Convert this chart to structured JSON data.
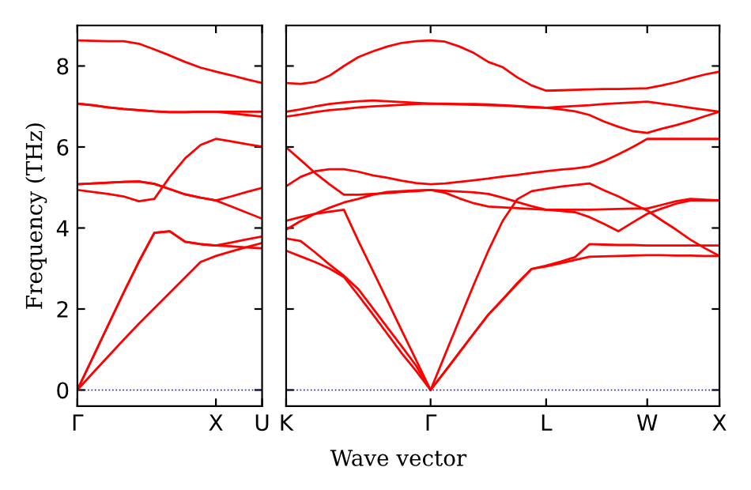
{
  "chart_data": [
    {
      "type": "line",
      "ylabel": "Frequency (THz)",
      "ylim": [
        -0.4,
        9
      ],
      "yticks": [
        0,
        2,
        4,
        6,
        8
      ],
      "categories": [
        "Γ",
        null,
        null,
        null,
        null,
        null,
        null,
        null,
        null,
        "X",
        null,
        null,
        "U"
      ],
      "grid": false,
      "legend": false,
      "marker": "none",
      "line_style": "solid",
      "ref_lines": [
        {
          "axis": "y",
          "value": 0,
          "color": "#0000ff",
          "line_style": "dotted"
        }
      ],
      "series": [
        {
          "color": "#ff0000",
          "values": [
            8.63,
            8.62,
            8.61,
            8.61,
            8.55,
            8.41,
            8.26,
            8.1,
            7.96,
            7.86,
            7.77,
            7.67,
            7.58
          ]
        },
        {
          "color": "#ff0000",
          "values": [
            7.07,
            7.03,
            6.98,
            6.94,
            6.91,
            6.88,
            6.86,
            6.86,
            6.87,
            6.87,
            6.87,
            6.87,
            6.87
          ]
        },
        {
          "color": "#ff0000",
          "values": [
            7.07,
            7.03,
            6.98,
            6.94,
            6.91,
            6.88,
            6.86,
            6.86,
            6.87,
            6.87,
            6.83,
            6.79,
            6.75
          ]
        },
        {
          "color": "#ff0000",
          "values": [
            4.94,
            4.89,
            4.84,
            4.78,
            4.66,
            4.72,
            5.26,
            5.72,
            6.05,
            6.2,
            6.14,
            6.07,
            6.01
          ]
        },
        {
          "color": "#ff0000",
          "values": [
            5.08,
            5.1,
            5.12,
            5.14,
            5.15,
            5.09,
            4.96,
            4.83,
            4.75,
            4.68,
            4.78,
            4.89,
            4.99
          ]
        },
        {
          "color": "#ff0000",
          "values": [
            5.08,
            5.1,
            5.12,
            5.14,
            5.15,
            5.09,
            4.96,
            4.83,
            4.75,
            4.68,
            4.53,
            4.38,
            4.23
          ]
        },
        {
          "color": "#ff0000",
          "values": [
            0,
            0.42,
            0.83,
            1.24,
            1.64,
            2.02,
            2.4,
            2.78,
            3.16,
            3.31,
            3.42,
            3.53,
            3.63
          ]
        },
        {
          "color": "#ff0000",
          "values": [
            0,
            0.8,
            1.6,
            2.4,
            3.17,
            3.88,
            3.92,
            3.66,
            3.6,
            3.57,
            3.64,
            3.72,
            3.79
          ]
        },
        {
          "color": "#ff0000",
          "values": [
            0,
            0.8,
            1.6,
            2.4,
            3.17,
            3.88,
            3.92,
            3.66,
            3.6,
            3.57,
            3.55,
            3.52,
            3.5
          ]
        }
      ]
    },
    {
      "type": "line",
      "xlabel": "Wave vector",
      "tick_labels": "x",
      "ylim": [
        -0.4,
        9
      ],
      "yticks": [
        0,
        2,
        4,
        6,
        8
      ],
      "categories": [
        "K",
        null,
        null,
        null,
        null,
        null,
        null,
        null,
        null,
        null,
        "Γ",
        null,
        null,
        null,
        null,
        null,
        null,
        null,
        "L",
        null,
        null,
        null,
        null,
        null,
        null,
        "W",
        null,
        null,
        null,
        null,
        "X"
      ],
      "grid": false,
      "legend": false,
      "marker": "none",
      "line_style": "solid",
      "ref_lines": [
        {
          "axis": "y",
          "value": 0,
          "color": "#0000ff",
          "line_style": "dotted"
        }
      ],
      "series": [
        {
          "color": "#ff0000",
          "values": [
            7.58,
            7.56,
            7.6,
            7.76,
            8.0,
            8.22,
            8.36,
            8.48,
            8.57,
            8.61,
            8.63,
            8.6,
            8.48,
            8.32,
            8.1,
            7.97,
            7.72,
            7.52,
            7.39,
            7.4,
            7.41,
            7.42,
            7.43,
            7.43,
            7.44,
            7.45,
            7.52,
            7.6,
            7.7,
            7.79,
            7.86
          ]
        },
        {
          "color": "#ff0000",
          "values": [
            6.87,
            6.93,
            7.0,
            7.06,
            7.1,
            7.13,
            7.15,
            7.13,
            7.11,
            7.09,
            7.07,
            7.07,
            7.06,
            7.06,
            7.05,
            7.03,
            7.01,
            6.99,
            6.97,
            6.99,
            7.01,
            7.03,
            7.06,
            7.08,
            7.1,
            7.12,
            7.07,
            7.02,
            6.97,
            6.92,
            6.87
          ]
        },
        {
          "color": "#ff0000",
          "values": [
            6.75,
            6.8,
            6.86,
            6.91,
            6.94,
            6.98,
            7.0,
            7.02,
            7.04,
            7.06,
            7.07,
            7.06,
            7.05,
            7.04,
            7.03,
            7.02,
            7.0,
            6.98,
            6.97,
            6.93,
            6.88,
            6.79,
            6.63,
            6.5,
            6.39,
            6.35,
            6.45,
            6.54,
            6.64,
            6.76,
            6.87
          ]
        },
        {
          "color": "#ff0000",
          "values": [
            5.99,
            5.68,
            5.36,
            5.08,
            4.82,
            4.82,
            4.84,
            4.86,
            4.89,
            4.91,
            4.94,
            4.92,
            4.9,
            4.88,
            4.84,
            4.75,
            4.64,
            4.54,
            4.45,
            4.45,
            4.45,
            4.45,
            4.46,
            4.47,
            4.48,
            4.48,
            4.57,
            4.66,
            4.72,
            4.7,
            4.68
          ]
        },
        {
          "color": "#ff0000",
          "values": [
            5.03,
            5.26,
            5.4,
            5.45,
            5.45,
            5.39,
            5.3,
            5.24,
            5.17,
            5.11,
            5.08,
            5.1,
            5.14,
            5.18,
            5.22,
            5.27,
            5.31,
            5.36,
            5.4,
            5.44,
            5.47,
            5.52,
            5.65,
            5.82,
            6.0,
            6.2,
            6.2,
            6.2,
            6.2,
            6.2,
            6.2
          ]
        },
        {
          "color": "#ff0000",
          "values": [
            3.96,
            4.17,
            4.35,
            4.5,
            4.63,
            4.72,
            4.82,
            4.89,
            4.91,
            4.93,
            4.94,
            4.87,
            4.73,
            4.61,
            4.53,
            4.51,
            4.49,
            4.47,
            4.45,
            4.42,
            4.39,
            4.27,
            4.1,
            3.92,
            4.14,
            4.35,
            4.48,
            4.6,
            4.68,
            4.68,
            4.68
          ]
        },
        {
          "color": "#ff0000",
          "values": [
            4.18,
            4.27,
            4.35,
            4.4,
            4.45,
            3.68,
            2.95,
            2.21,
            1.47,
            0.74,
            0,
            0.87,
            1.74,
            2.61,
            3.44,
            4.18,
            4.71,
            4.91,
            4.97,
            5.02,
            5.06,
            5.1,
            4.93,
            4.78,
            4.6,
            4.43,
            4.19,
            3.96,
            3.71,
            3.5,
            3.31
          ]
        },
        {
          "color": "#ff0000",
          "values": [
            3.74,
            3.68,
            3.4,
            3.1,
            2.82,
            2.49,
            2.02,
            1.55,
            1.08,
            0.6,
            0,
            0.46,
            0.93,
            1.4,
            1.86,
            2.24,
            2.64,
            2.99,
            3.07,
            3.17,
            3.28,
            3.6,
            3.59,
            3.58,
            3.58,
            3.57,
            3.57,
            3.57,
            3.57,
            3.57,
            3.57
          ]
        },
        {
          "color": "#ff0000",
          "values": [
            3.44,
            3.3,
            3.16,
            3.0,
            2.79,
            2.34,
            1.87,
            1.39,
            0.91,
            0.47,
            0,
            0.46,
            0.93,
            1.4,
            1.86,
            2.24,
            2.62,
            2.99,
            3.05,
            3.13,
            3.21,
            3.29,
            3.3,
            3.31,
            3.32,
            3.33,
            3.33,
            3.32,
            3.32,
            3.31,
            3.31
          ]
        }
      ]
    }
  ]
}
